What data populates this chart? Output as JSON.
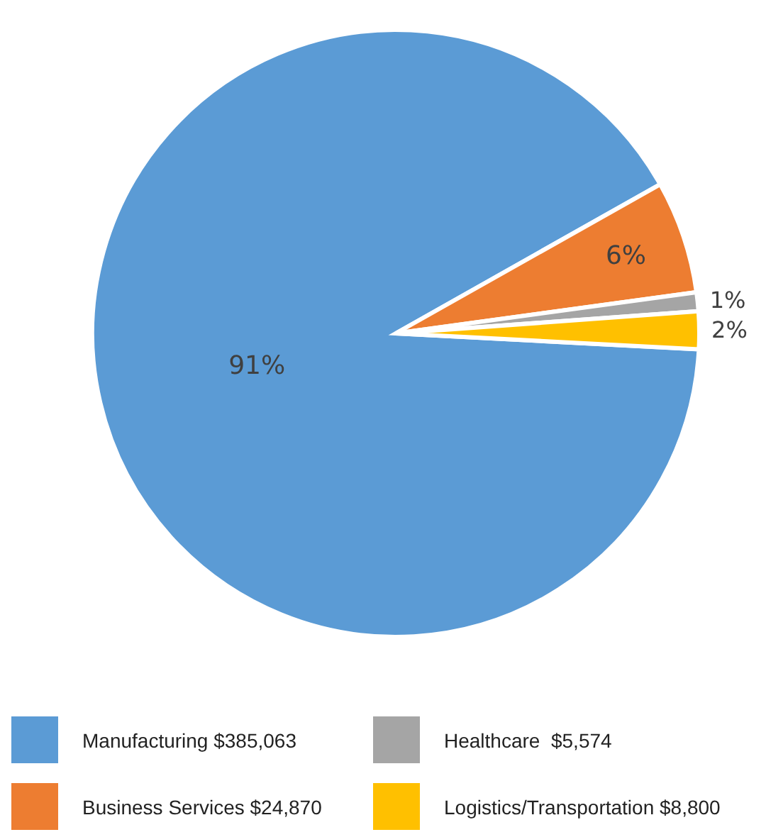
{
  "chart_data": {
    "type": "pie",
    "categories": [
      "Manufacturing $385,063",
      "Business Services $24,870",
      "Healthcare  $5,574",
      "Logistics/Transportation $8,800"
    ],
    "values": [
      91,
      6,
      1,
      2
    ],
    "colors": [
      "#5b9bd5",
      "#ed7d31",
      "#a5a5a5",
      "#ffc000"
    ],
    "value_labels": [
      "91%",
      "6%",
      "1%",
      "2%"
    ],
    "legend": "bottom"
  }
}
